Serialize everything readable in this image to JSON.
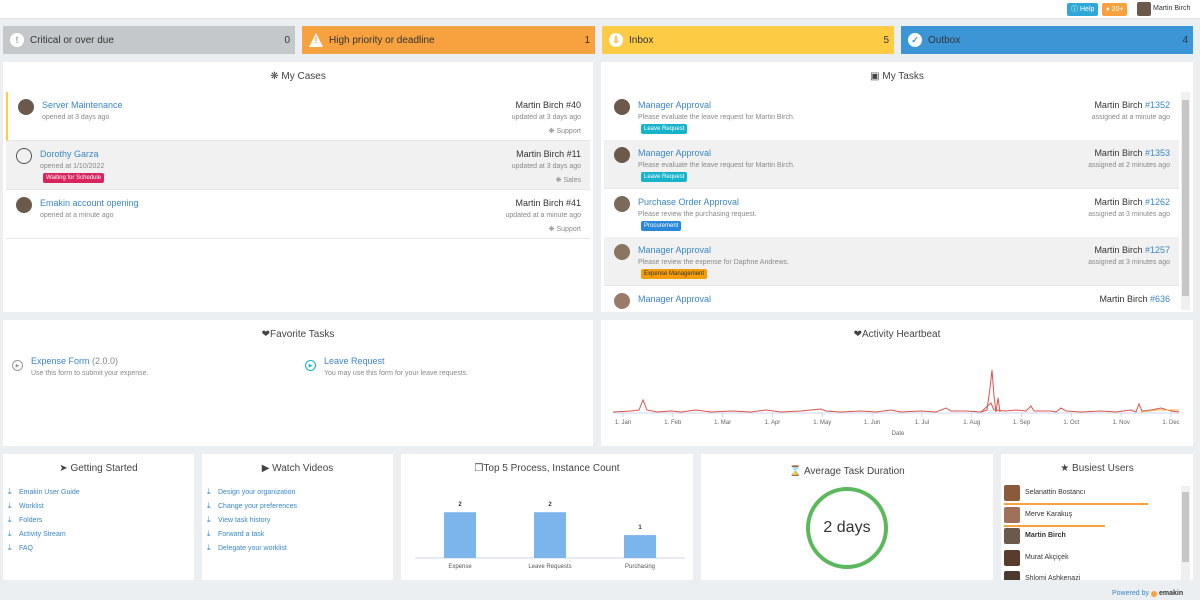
{
  "topbar": {
    "help_label": "Help",
    "notif_label": "20+",
    "user_name": "Martin Birch"
  },
  "tiles": [
    {
      "label": "Critical or over due",
      "count": "0",
      "color": "#c5c8cb",
      "icon_color": "#9a9ea2",
      "icon": "exclamation-icon"
    },
    {
      "label": "High priority or deadline",
      "count": "1",
      "color": "#f7a23e",
      "icon_color": "#f7a23e",
      "icon": "warning-icon"
    },
    {
      "label": "Inbox",
      "count": "5",
      "color": "#fecb45",
      "icon_color": "#f0ad1a",
      "icon": "inbox-icon"
    },
    {
      "label": "Outbox",
      "count": "4",
      "color": "#3c96d6",
      "icon_color": "#3c96d6",
      "icon": "outbox-icon"
    }
  ],
  "my_cases": {
    "title": "My Cases",
    "items": [
      {
        "title": "Server Maintenance",
        "sub": "opened at 3 days ago",
        "owner": "Martin Birch #40",
        "updated": "updated at 3 days ago",
        "category": "Support",
        "badge": "",
        "badge_color": ""
      },
      {
        "title": "Dorothy Garza",
        "sub": "opened at 1/10/2022",
        "owner": "Martin Birch #11",
        "updated": "updated at 3 days ago",
        "category": "Sales",
        "badge": "Waiting for Schedule",
        "badge_color": "#d9245e"
      },
      {
        "title": "Emakin account opening",
        "sub": "opened at a minute ago",
        "owner": "Martin Birch #41",
        "updated": "updated at a minute ago",
        "category": "Support",
        "badge": "",
        "badge_color": ""
      }
    ]
  },
  "my_tasks": {
    "title": "My Tasks",
    "items": [
      {
        "title": "Manager Approval",
        "sub": "Please evaluate the leave request for Martin Birch.",
        "owner": "Martin Birch",
        "num": "#1352",
        "assigned": "assigned at a minute ago",
        "badge": "Leave Request",
        "badge_color": "#17b3c9"
      },
      {
        "title": "Manager Approval",
        "sub": "Please evaluate the leave request for Martin Birch.",
        "owner": "Martin Birch",
        "num": "#1353",
        "assigned": "assigned at 2 minutes ago",
        "badge": "Leave Request",
        "badge_color": "#17b3c9"
      },
      {
        "title": "Purchase Order Approval",
        "sub": "Please review the purchasing request.",
        "owner": "Martin Birch",
        "num": "#1262",
        "assigned": "assigned at 3 minutes ago",
        "badge": "Procurement",
        "badge_color": "#2a88d8"
      },
      {
        "title": "Manager Approval",
        "sub": "Please review the expense for Daphne Andrews.",
        "owner": "Martin Birch",
        "num": "#1257",
        "assigned": "assigned at 3 minutes ago",
        "badge": "Expense Management",
        "badge_color": "#f59c0b"
      },
      {
        "title": "Manager Approval",
        "sub": "",
        "owner": "Martin Birch",
        "num": "#636",
        "assigned": "",
        "badge": "",
        "badge_color": ""
      }
    ]
  },
  "favorite_tasks": {
    "title": "Favorite Tasks",
    "items": [
      {
        "title": "Expense Form",
        "version": "(2.0.0)",
        "sub": "Use this form to submit your expense."
      },
      {
        "title": "Leave Request",
        "version": "",
        "sub": "You may use this form for your leave requests."
      }
    ]
  },
  "activity": {
    "title": "Activity Heartbeat",
    "x_labels": [
      "1. Jan",
      "1. Feb",
      "1. Mar",
      "1. Apr",
      "1. May",
      "1. Jun",
      "1. Jul",
      "1. Aug",
      "1. Sep",
      "1. Oct",
      "1. Nov",
      "1. Dec"
    ],
    "xlabel": "Date"
  },
  "getting_started": {
    "title": "Getting Started",
    "links": [
      "Emakin User Guide",
      "Worklist",
      "Folders",
      "Activity Stream",
      "FAQ"
    ]
  },
  "watch_videos": {
    "title": "Watch Videos",
    "links": [
      "Design your organization",
      "Change your preferences",
      "View task history",
      "Forward a task",
      "Delegate your worklist"
    ]
  },
  "top5": {
    "title": "Top 5 Process, Instance Count"
  },
  "chart_data": {
    "type": "bar",
    "categories": [
      "Expense",
      "Leave Requests",
      "Purchasing"
    ],
    "values": [
      2,
      2,
      1
    ],
    "ylim": [
      0,
      2.5
    ],
    "color": "#7cb5ec",
    "data_labels": true
  },
  "avg_duration": {
    "title": "Average Task Duration",
    "value": "2 days",
    "ring_color": "#5cb85c"
  },
  "busiest": {
    "title": "Busiest Users",
    "users": [
      {
        "name": "Selanattin Bostancı",
        "bold": false,
        "bar": 0.9
      },
      {
        "name": "Merve Karakuş",
        "bold": false,
        "bar": 0.63
      },
      {
        "name": "Martin Birch",
        "bold": true,
        "bar": 0
      },
      {
        "name": "Murat Akçiçek",
        "bold": false,
        "bar": 0
      },
      {
        "name": "Shlomi Ashkenazi",
        "bold": false,
        "bar": 0
      }
    ]
  },
  "footer": {
    "powered": "Powered by",
    "brand": "emakin"
  }
}
